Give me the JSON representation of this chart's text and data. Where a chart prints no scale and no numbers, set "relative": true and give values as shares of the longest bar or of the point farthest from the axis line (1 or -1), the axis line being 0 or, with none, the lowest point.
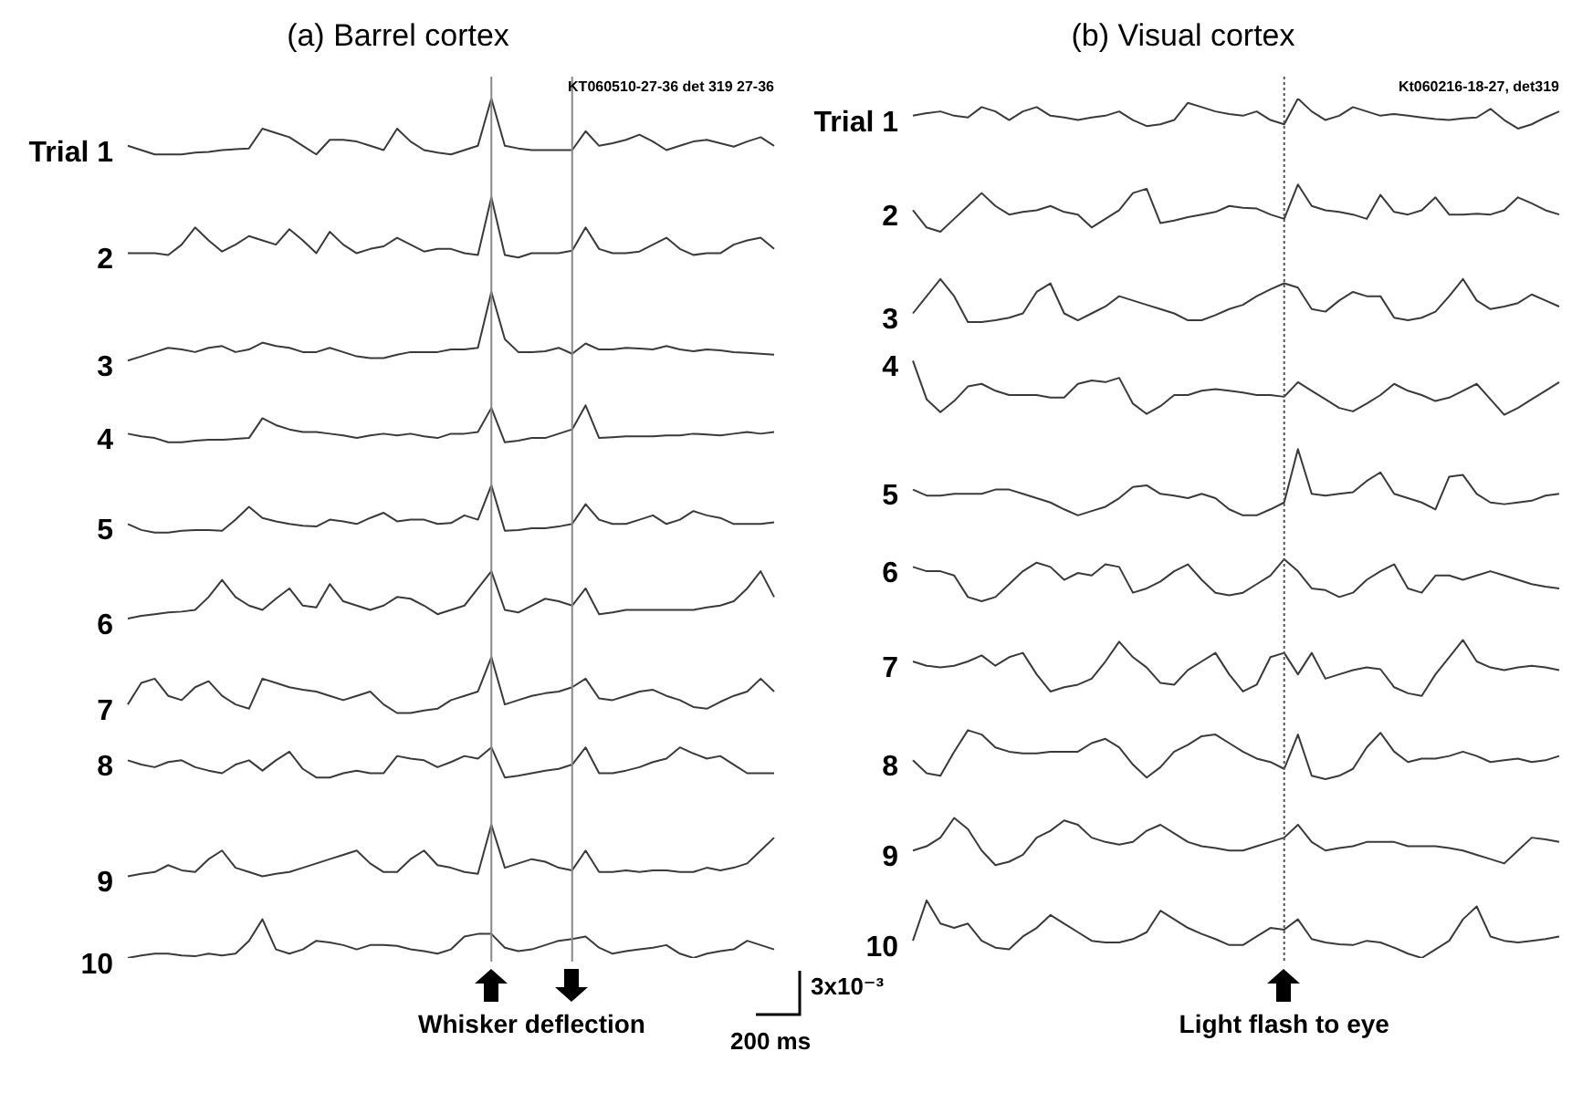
{
  "chart_data": [
    {
      "type": "line",
      "title": "(a) Barrel cortex",
      "relative": true,
      "legend": false,
      "marker": "none",
      "line_style": "solid",
      "categories": [
        null,
        null,
        null,
        null,
        null,
        null,
        null,
        null,
        null,
        null,
        null,
        null,
        null,
        null,
        null,
        null,
        null,
        null,
        null,
        null,
        null,
        null,
        null,
        null,
        null,
        null,
        null,
        null,
        null,
        null,
        null,
        null,
        null,
        null,
        null,
        null,
        null,
        null,
        null,
        null,
        null,
        null,
        null,
        null,
        null,
        null,
        null,
        null,
        null
      ],
      "annotations": [
        "KT060510-27-36 det 319 27-36",
        "Whisker deflection",
        "3x10⁻³",
        "200 ms"
      ],
      "series": [
        {
          "name": "Trial 1",
          "color": "#3a3a3a",
          "values": [
            0.945,
            0.94,
            0.935,
            0.935,
            0.935,
            0.937,
            0.938,
            0.94,
            0.941,
            0.942,
            0.965,
            0.96,
            0.955,
            0.945,
            0.935,
            0.952,
            0.952,
            0.95,
            0.945,
            0.94,
            0.965,
            0.95,
            0.94,
            0.937,
            0.935,
            0.94,
            0.945,
            1.0,
            0.945,
            0.942,
            0.94,
            0.94,
            0.94,
            0.94,
            0.962,
            0.945,
            0.948,
            0.952,
            0.958,
            0.95,
            0.94,
            0.945,
            0.95,
            0.952,
            0.948,
            0.944,
            0.95,
            0.955,
            0.945
          ]
        },
        {
          "name": "2",
          "color": "#3a3a3a",
          "values": [
            0.82,
            0.82,
            0.82,
            0.818,
            0.83,
            0.85,
            0.835,
            0.822,
            0.83,
            0.84,
            0.835,
            0.83,
            0.848,
            0.835,
            0.82,
            0.845,
            0.83,
            0.82,
            0.825,
            0.828,
            0.838,
            0.83,
            0.822,
            0.825,
            0.825,
            0.82,
            0.818,
            0.885,
            0.818,
            0.815,
            0.82,
            0.82,
            0.82,
            0.823,
            0.85,
            0.825,
            0.82,
            0.82,
            0.822,
            0.83,
            0.838,
            0.825,
            0.818,
            0.82,
            0.82,
            0.83,
            0.835,
            0.838,
            0.825
          ]
        },
        {
          "name": "3",
          "color": "#3a3a3a",
          "values": [
            0.695,
            0.7,
            0.705,
            0.71,
            0.708,
            0.705,
            0.71,
            0.712,
            0.705,
            0.708,
            0.716,
            0.712,
            0.71,
            0.705,
            0.705,
            0.71,
            0.705,
            0.7,
            0.698,
            0.698,
            0.702,
            0.705,
            0.705,
            0.705,
            0.708,
            0.708,
            0.71,
            0.775,
            0.72,
            0.705,
            0.705,
            0.706,
            0.71,
            0.703,
            0.715,
            0.708,
            0.708,
            0.71,
            0.709,
            0.708,
            0.712,
            0.708,
            0.706,
            0.708,
            0.707,
            0.705,
            0.704,
            0.703,
            0.702
          ]
        },
        {
          "name": "4",
          "color": "#3a3a3a",
          "values": [
            0.61,
            0.607,
            0.605,
            0.6,
            0.6,
            0.602,
            0.603,
            0.603,
            0.604,
            0.605,
            0.628,
            0.62,
            0.615,
            0.612,
            0.612,
            0.61,
            0.608,
            0.605,
            0.608,
            0.61,
            0.608,
            0.61,
            0.607,
            0.605,
            0.61,
            0.61,
            0.612,
            0.64,
            0.6,
            0.602,
            0.605,
            0.605,
            0.61,
            0.615,
            0.643,
            0.605,
            0.606,
            0.607,
            0.607,
            0.607,
            0.608,
            0.608,
            0.61,
            0.609,
            0.608,
            0.61,
            0.612,
            0.61,
            0.612
          ]
        },
        {
          "name": "5",
          "color": "#3a3a3a",
          "values": [
            0.505,
            0.498,
            0.495,
            0.495,
            0.497,
            0.498,
            0.498,
            0.497,
            0.51,
            0.525,
            0.512,
            0.508,
            0.505,
            0.503,
            0.502,
            0.51,
            0.508,
            0.505,
            0.512,
            0.518,
            0.508,
            0.51,
            0.51,
            0.505,
            0.506,
            0.515,
            0.51,
            0.55,
            0.497,
            0.498,
            0.5,
            0.5,
            0.502,
            0.505,
            0.528,
            0.51,
            0.505,
            0.505,
            0.51,
            0.515,
            0.505,
            0.51,
            0.52,
            0.515,
            0.512,
            0.505,
            0.505,
            0.505,
            0.507
          ]
        },
        {
          "name": "6",
          "color": "#3a3a3a",
          "values": [
            0.395,
            0.398,
            0.4,
            0.402,
            0.403,
            0.405,
            0.42,
            0.44,
            0.42,
            0.41,
            0.405,
            0.418,
            0.43,
            0.41,
            0.408,
            0.435,
            0.415,
            0.41,
            0.405,
            0.41,
            0.42,
            0.418,
            0.41,
            0.4,
            0.405,
            0.41,
            0.43,
            0.45,
            0.405,
            0.402,
            0.41,
            0.418,
            0.415,
            0.41,
            0.43,
            0.4,
            0.402,
            0.405,
            0.405,
            0.405,
            0.405,
            0.405,
            0.405,
            0.408,
            0.41,
            0.415,
            0.43,
            0.45,
            0.42
          ]
        },
        {
          "name": "7",
          "color": "#3a3a3a",
          "values": [
            0.295,
            0.32,
            0.325,
            0.305,
            0.3,
            0.315,
            0.322,
            0.305,
            0.295,
            0.29,
            0.325,
            0.32,
            0.315,
            0.312,
            0.31,
            0.305,
            0.3,
            0.305,
            0.31,
            0.295,
            0.285,
            0.285,
            0.288,
            0.29,
            0.3,
            0.305,
            0.31,
            0.35,
            0.295,
            0.3,
            0.305,
            0.308,
            0.31,
            0.315,
            0.325,
            0.302,
            0.3,
            0.305,
            0.31,
            0.312,
            0.305,
            0.3,
            0.292,
            0.29,
            0.298,
            0.305,
            0.31,
            0.325,
            0.31
          ]
        },
        {
          "name": "8",
          "color": "#3a3a3a",
          "values": [
            0.23,
            0.225,
            0.222,
            0.228,
            0.23,
            0.222,
            0.218,
            0.215,
            0.225,
            0.23,
            0.218,
            0.23,
            0.24,
            0.22,
            0.21,
            0.21,
            0.215,
            0.218,
            0.215,
            0.215,
            0.235,
            0.232,
            0.23,
            0.222,
            0.228,
            0.235,
            0.232,
            0.245,
            0.21,
            0.212,
            0.215,
            0.218,
            0.22,
            0.225,
            0.245,
            0.215,
            0.215,
            0.218,
            0.222,
            0.228,
            0.232,
            0.245,
            0.238,
            0.232,
            0.235,
            0.225,
            0.215,
            0.215,
            0.215
          ]
        },
        {
          "name": "9",
          "color": "#3a3a3a",
          "values": [
            0.095,
            0.098,
            0.1,
            0.108,
            0.102,
            0.1,
            0.115,
            0.125,
            0.105,
            0.1,
            0.095,
            0.098,
            0.1,
            0.105,
            0.11,
            0.115,
            0.12,
            0.125,
            0.11,
            0.1,
            0.1,
            0.115,
            0.125,
            0.108,
            0.105,
            0.1,
            0.098,
            0.155,
            0.105,
            0.11,
            0.115,
            0.112,
            0.105,
            0.102,
            0.125,
            0.1,
            0.1,
            0.102,
            0.1,
            0.102,
            0.102,
            0.1,
            0.1,
            0.105,
            0.102,
            0.105,
            0.11,
            0.125,
            0.14
          ]
        },
        {
          "name": "10",
          "color": "#3a3a3a",
          "values": [
            0.0,
            0.003,
            0.005,
            0.005,
            0.003,
            0.002,
            0.005,
            0.003,
            0.005,
            0.02,
            0.045,
            0.01,
            0.005,
            0.01,
            0.02,
            0.018,
            0.015,
            0.01,
            0.015,
            0.015,
            0.014,
            0.01,
            0.008,
            0.005,
            0.01,
            0.025,
            0.028,
            0.028,
            0.012,
            0.008,
            0.01,
            0.015,
            0.02,
            0.022,
            0.025,
            0.012,
            0.005,
            0.008,
            0.01,
            0.012,
            0.015,
            0.005,
            0.0,
            0.005,
            0.008,
            0.01,
            0.02,
            0.015,
            0.01
          ]
        }
      ]
    },
    {
      "type": "line",
      "title": "(b) Visual cortex",
      "relative": true,
      "legend": false,
      "marker": "none",
      "line_style": "solid",
      "categories": [
        null,
        null,
        null,
        null,
        null,
        null,
        null,
        null,
        null,
        null,
        null,
        null,
        null,
        null,
        null,
        null,
        null,
        null,
        null,
        null,
        null,
        null,
        null,
        null,
        null,
        null,
        null,
        null,
        null,
        null,
        null,
        null,
        null,
        null,
        null,
        null,
        null,
        null,
        null,
        null,
        null,
        null,
        null,
        null,
        null,
        null,
        null,
        null
      ],
      "annotations": [
        "Kt060216-18-27, det319",
        "Light flash to eye"
      ],
      "series": [
        {
          "name": "Trial 1",
          "color": "#3a3a3a",
          "values": [
            0.98,
            0.983,
            0.985,
            0.98,
            0.978,
            0.99,
            0.985,
            0.975,
            0.985,
            0.99,
            0.98,
            0.978,
            0.975,
            0.978,
            0.98,
            0.985,
            0.975,
            0.968,
            0.97,
            0.975,
            0.995,
            0.99,
            0.985,
            0.982,
            0.98,
            0.985,
            0.975,
            0.97,
            1.0,
            0.985,
            0.975,
            0.98,
            0.99,
            0.985,
            0.98,
            0.982,
            0.98,
            0.978,
            0.976,
            0.975,
            0.977,
            0.978,
            0.988,
            0.975,
            0.965,
            0.97,
            0.978,
            0.985
          ]
        },
        {
          "name": "2",
          "color": "#3a3a3a",
          "values": [
            0.87,
            0.85,
            0.845,
            0.86,
            0.875,
            0.89,
            0.875,
            0.865,
            0.868,
            0.87,
            0.875,
            0.868,
            0.865,
            0.85,
            0.86,
            0.87,
            0.89,
            0.895,
            0.855,
            0.858,
            0.862,
            0.865,
            0.868,
            0.875,
            0.873,
            0.872,
            0.865,
            0.86,
            0.9,
            0.875,
            0.87,
            0.868,
            0.865,
            0.86,
            0.888,
            0.868,
            0.865,
            0.87,
            0.885,
            0.865,
            0.865,
            0.866,
            0.865,
            0.87,
            0.885,
            0.878,
            0.87,
            0.865
          ]
        },
        {
          "name": "3",
          "color": "#3a3a3a",
          "values": [
            0.75,
            0.77,
            0.79,
            0.77,
            0.74,
            0.74,
            0.742,
            0.745,
            0.75,
            0.775,
            0.785,
            0.75,
            0.742,
            0.75,
            0.758,
            0.77,
            0.765,
            0.76,
            0.755,
            0.75,
            0.742,
            0.742,
            0.748,
            0.755,
            0.76,
            0.77,
            0.778,
            0.785,
            0.78,
            0.755,
            0.752,
            0.765,
            0.775,
            0.77,
            0.77,
            0.745,
            0.742,
            0.745,
            0.752,
            0.77,
            0.79,
            0.765,
            0.755,
            0.758,
            0.762,
            0.772,
            0.765,
            0.758
          ]
        },
        {
          "name": "4",
          "color": "#3a3a3a",
          "values": [
            0.695,
            0.65,
            0.635,
            0.648,
            0.665,
            0.668,
            0.66,
            0.655,
            0.655,
            0.655,
            0.652,
            0.652,
            0.668,
            0.672,
            0.67,
            0.675,
            0.645,
            0.633,
            0.642,
            0.655,
            0.655,
            0.66,
            0.662,
            0.66,
            0.658,
            0.655,
            0.655,
            0.653,
            0.67,
            0.66,
            0.65,
            0.64,
            0.636,
            0.645,
            0.655,
            0.668,
            0.66,
            0.655,
            0.648,
            0.652,
            0.66,
            0.668,
            0.65,
            0.632,
            0.64,
            0.65,
            0.66,
            0.67
          ]
        },
        {
          "name": "5",
          "color": "#3a3a3a",
          "values": [
            0.545,
            0.538,
            0.538,
            0.54,
            0.54,
            0.54,
            0.545,
            0.545,
            0.54,
            0.535,
            0.53,
            0.522,
            0.515,
            0.52,
            0.525,
            0.535,
            0.548,
            0.55,
            0.54,
            0.538,
            0.535,
            0.54,
            0.535,
            0.522,
            0.515,
            0.515,
            0.522,
            0.53,
            0.592,
            0.54,
            0.538,
            0.54,
            0.542,
            0.555,
            0.565,
            0.54,
            0.535,
            0.53,
            0.522,
            0.56,
            0.562,
            0.54,
            0.53,
            0.528,
            0.53,
            0.532,
            0.538,
            0.54
          ]
        },
        {
          "name": "6",
          "color": "#3a3a3a",
          "values": [
            0.455,
            0.45,
            0.45,
            0.445,
            0.42,
            0.415,
            0.42,
            0.435,
            0.45,
            0.46,
            0.455,
            0.44,
            0.448,
            0.445,
            0.458,
            0.455,
            0.425,
            0.43,
            0.438,
            0.45,
            0.458,
            0.44,
            0.425,
            0.422,
            0.425,
            0.435,
            0.445,
            0.464,
            0.45,
            0.43,
            0.428,
            0.42,
            0.425,
            0.44,
            0.45,
            0.458,
            0.43,
            0.425,
            0.445,
            0.445,
            0.44,
            0.445,
            0.45,
            0.445,
            0.44,
            0.435,
            0.432,
            0.43
          ]
        },
        {
          "name": "7",
          "color": "#3a3a3a",
          "values": [
            0.345,
            0.34,
            0.338,
            0.34,
            0.345,
            0.352,
            0.34,
            0.35,
            0.355,
            0.33,
            0.31,
            0.315,
            0.318,
            0.325,
            0.345,
            0.368,
            0.35,
            0.338,
            0.32,
            0.318,
            0.335,
            0.345,
            0.355,
            0.33,
            0.31,
            0.318,
            0.35,
            0.355,
            0.33,
            0.355,
            0.325,
            0.33,
            0.335,
            0.338,
            0.336,
            0.315,
            0.308,
            0.305,
            0.33,
            0.35,
            0.37,
            0.345,
            0.338,
            0.335,
            0.338,
            0.34,
            0.338,
            0.335
          ]
        },
        {
          "name": "8",
          "color": "#3a3a3a",
          "values": [
            0.23,
            0.215,
            0.212,
            0.24,
            0.265,
            0.26,
            0.245,
            0.24,
            0.238,
            0.238,
            0.24,
            0.24,
            0.24,
            0.25,
            0.255,
            0.245,
            0.225,
            0.21,
            0.222,
            0.24,
            0.248,
            0.258,
            0.26,
            0.25,
            0.24,
            0.232,
            0.228,
            0.22,
            0.26,
            0.212,
            0.208,
            0.212,
            0.22,
            0.245,
            0.262,
            0.24,
            0.228,
            0.232,
            0.232,
            0.235,
            0.24,
            0.235,
            0.228,
            0.23,
            0.232,
            0.228,
            0.23,
            0.235
          ]
        },
        {
          "name": "9",
          "color": "#3a3a3a",
          "values": [
            0.125,
            0.13,
            0.14,
            0.163,
            0.15,
            0.125,
            0.108,
            0.112,
            0.12,
            0.14,
            0.148,
            0.16,
            0.155,
            0.14,
            0.135,
            0.132,
            0.135,
            0.148,
            0.155,
            0.145,
            0.135,
            0.13,
            0.128,
            0.125,
            0.125,
            0.13,
            0.135,
            0.14,
            0.155,
            0.135,
            0.125,
            0.128,
            0.13,
            0.135,
            0.135,
            0.135,
            0.13,
            0.13,
            0.13,
            0.128,
            0.125,
            0.12,
            0.115,
            0.11,
            0.125,
            0.14,
            0.138,
            0.135
          ]
        },
        {
          "name": "10",
          "color": "#3a3a3a",
          "values": [
            0.02,
            0.067,
            0.04,
            0.035,
            0.04,
            0.02,
            0.012,
            0.01,
            0.025,
            0.035,
            0.05,
            0.04,
            0.03,
            0.02,
            0.018,
            0.018,
            0.022,
            0.03,
            0.055,
            0.045,
            0.035,
            0.028,
            0.022,
            0.015,
            0.015,
            0.025,
            0.035,
            0.033,
            0.045,
            0.022,
            0.018,
            0.016,
            0.015,
            0.02,
            0.018,
            0.012,
            0.005,
            0.0,
            0.01,
            0.02,
            0.045,
            0.06,
            0.025,
            0.02,
            0.018,
            0.02,
            0.022,
            0.025
          ]
        }
      ]
    }
  ]
}
